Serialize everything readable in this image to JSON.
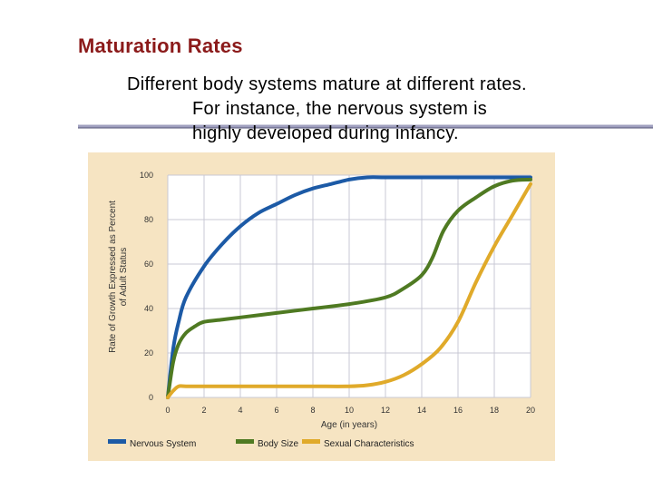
{
  "slide": {
    "title": "Maturation Rates",
    "bullet_line1": "Different body systems mature at different rates.",
    "bullet_line2": "For instance, the nervous system is",
    "bullet_line3": "highly developed during infancy."
  },
  "colors": {
    "title": "#8b1a1a",
    "divider": "#a0a0bf",
    "panel": "#f6e4c2",
    "plot_bg": "#ffffff",
    "grid": "#c8c8d4"
  },
  "chart_data": {
    "type": "line",
    "xlabel": "Age (in years)",
    "ylabel_line1": "Rate of Growth Expressed as Percent",
    "ylabel_line2": "of Adult Status",
    "xlim": [
      0,
      20
    ],
    "ylim": [
      0,
      100
    ],
    "x_ticks": [
      0,
      2,
      4,
      6,
      8,
      10,
      12,
      14,
      16,
      18,
      20
    ],
    "y_ticks": [
      0,
      20,
      40,
      60,
      80,
      100
    ],
    "grid": true,
    "legend_position": "bottom",
    "series": [
      {
        "name": "Nervous System",
        "color": "#1c5aa6",
        "x": [
          0,
          0.3,
          0.6,
          1,
          2,
          3,
          4,
          5,
          6,
          7,
          8,
          9,
          10,
          11,
          12,
          14,
          16,
          18,
          20
        ],
        "y": [
          0,
          22,
          34,
          45,
          59,
          69,
          77,
          83,
          87,
          91,
          94,
          96,
          98,
          99,
          99,
          99,
          99,
          99,
          99
        ]
      },
      {
        "name": "Body Size",
        "color": "#4f7a22",
        "x": [
          0,
          0.3,
          0.6,
          1,
          1.5,
          2,
          3,
          4,
          6,
          8,
          10,
          12,
          13,
          14,
          14.6,
          15.2,
          16,
          17,
          18,
          19,
          20
        ],
        "y": [
          0,
          16,
          24,
          29,
          32,
          34,
          35,
          36,
          38,
          40,
          42,
          45,
          49,
          55,
          63,
          75,
          84,
          90,
          95,
          97.5,
          98
        ]
      },
      {
        "name": "Sexual Characteristics",
        "color": "#e0aa2a",
        "x": [
          0,
          0.3,
          0.6,
          1,
          2,
          4,
          6,
          8,
          10,
          11,
          12,
          13,
          14,
          15,
          16,
          17,
          18,
          19,
          20
        ],
        "y": [
          0,
          3,
          5,
          5,
          5,
          5,
          5,
          5,
          5,
          5.5,
          7,
          10,
          15,
          22,
          34,
          52,
          68,
          82,
          96
        ]
      }
    ]
  }
}
